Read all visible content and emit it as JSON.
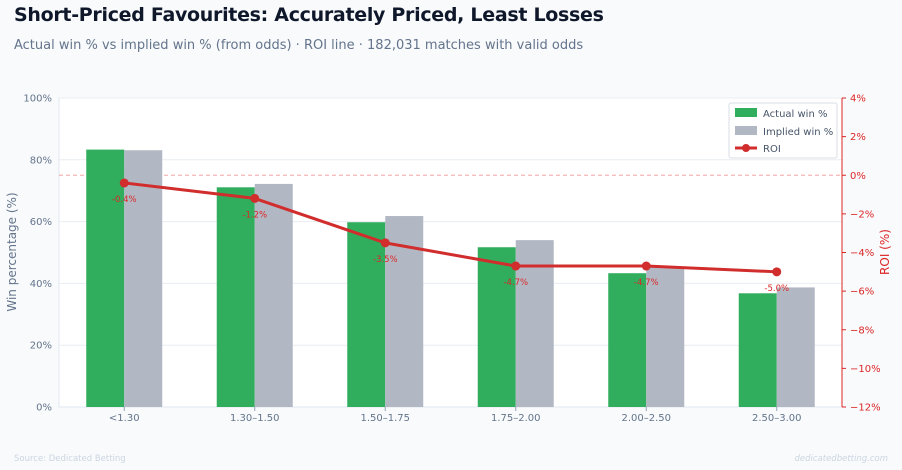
{
  "header": {
    "title": "Short-Priced Favourites: Accurately Priced, Least Losses",
    "subtitle": "Actual win % vs implied win % (from odds) · ROI line · 182,031 matches with valid odds"
  },
  "footer": {
    "source": "Source: Dedicated Betting",
    "watermark": "dedicatedbetting.com"
  },
  "colors": {
    "actual": "#31ad5e",
    "implied": "#b2b8c3",
    "roi": "#d12d2d",
    "zero_line": "#f3a5a5"
  },
  "chart_data": {
    "type": "bar",
    "categories": [
      "<1.30",
      "1.30–1.50",
      "1.50–1.75",
      "1.75–2.00",
      "2.00–2.50",
      "2.50–3.00"
    ],
    "series": [
      {
        "name": "Actual win %",
        "values": [
          83.3,
          71.1,
          59.8,
          51.7,
          43.3,
          36.8
        ]
      },
      {
        "name": "Implied win %",
        "values": [
          83.1,
          72.2,
          61.8,
          54.0,
          45.3,
          38.7
        ]
      },
      {
        "name": "ROI",
        "values": [
          -0.4,
          -1.2,
          -3.5,
          -4.7,
          -4.7,
          -5.0
        ]
      }
    ],
    "roi_labels": [
      "-0.4%",
      "-1.2%",
      "-3.5%",
      "-4.7%",
      "-4.7%",
      "-5.0%"
    ],
    "ylabel": "Win percentage (%)",
    "y2label": "ROI (%)",
    "ylim": [
      0,
      100
    ],
    "y2lim": [
      -12,
      4
    ],
    "yticks": [
      "0%",
      "20%",
      "40%",
      "60%",
      "80%",
      "100%"
    ],
    "y2ticks": [
      "−12%",
      "−10%",
      "−8%",
      "−6%",
      "−4%",
      "−2%",
      "0%",
      "2%",
      "4%"
    ],
    "grid": true,
    "legend_position": "top-right"
  }
}
